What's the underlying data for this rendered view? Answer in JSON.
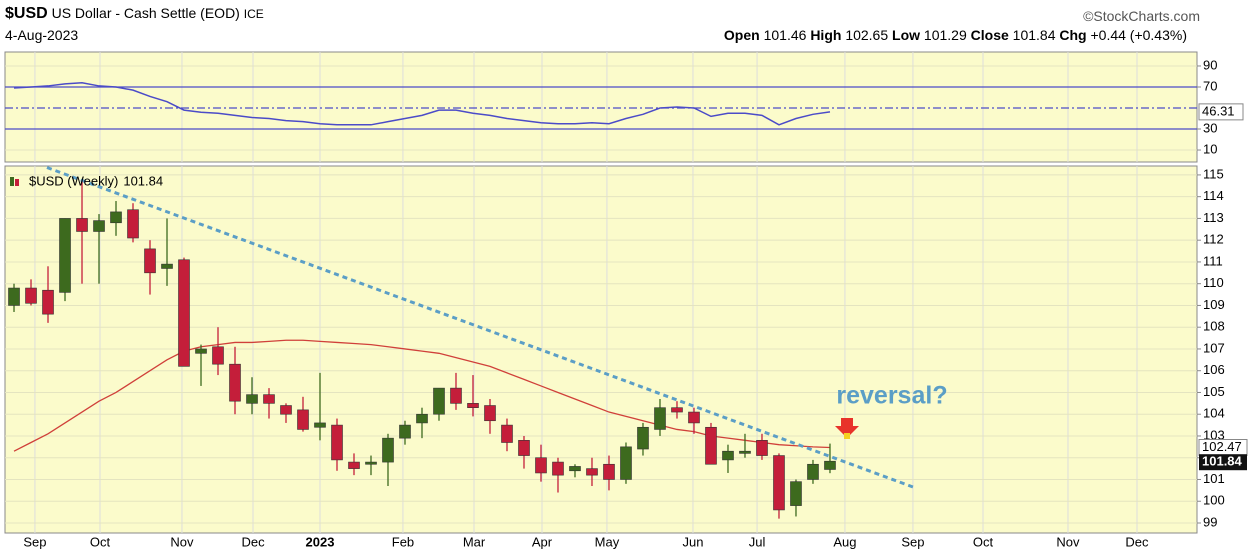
{
  "header": {
    "symbol": "$USD",
    "description": "US Dollar - Cash Settle (EOD)",
    "exchange": "ICE",
    "source": "©StockCharts.com",
    "date": "4-Aug-2023",
    "open_label": "Open",
    "high_label": "High",
    "low_label": "Low",
    "close_label": "Close",
    "chg_label": "Chg",
    "change": "+0.44 (+0.43%)"
  },
  "chart_data": [
    {
      "type": "line",
      "ylim": [
        -1.4,
        103.3
      ],
      "yticks": [
        10,
        30,
        70,
        90
      ],
      "reference_lines": [
        30,
        50,
        70
      ],
      "series": [
        {
          "color": "#4b4bc8",
          "values": [
            69,
            70,
            71,
            73,
            74,
            71,
            70,
            67,
            61,
            56,
            48,
            46,
            45,
            43,
            41,
            40,
            38,
            37,
            35,
            34,
            34,
            34,
            37,
            40,
            43,
            48,
            48,
            45,
            43,
            40,
            38,
            36,
            35,
            35,
            36,
            35,
            40,
            44,
            50,
            51,
            50,
            42,
            45,
            45,
            43,
            34,
            40,
            44,
            46.31
          ]
        }
      ]
    },
    {
      "type": "candlestick",
      "legend_label": "$USD (Weekly)",
      "annotation": "reversal?",
      "up_color": "#3d6a1e",
      "down_color": "#c41e3a",
      "open": [
        109.0,
        109.8,
        109.7,
        109.6,
        113.0,
        112.4,
        112.8,
        113.4,
        111.6,
        110.7,
        111.1,
        106.8,
        107.1,
        106.3,
        104.5,
        104.9,
        104.4,
        104.2,
        103.4,
        103.5,
        101.8,
        101.7,
        101.8,
        102.9,
        103.6,
        104.0,
        105.2,
        104.5,
        104.4,
        103.5,
        102.8,
        102.0,
        101.8,
        101.4,
        101.5,
        101.7,
        101.0,
        102.4,
        103.3,
        104.3,
        104.1,
        103.4,
        101.9,
        102.2,
        102.8,
        102.1,
        99.8,
        101.0,
        101.46
      ],
      "high": [
        110.0,
        110.2,
        110.8,
        113.0,
        114.7,
        113.2,
        113.8,
        113.7,
        112.0,
        113.0,
        111.2,
        107.2,
        108.0,
        107.1,
        105.7,
        105.2,
        104.5,
        104.8,
        105.9,
        103.8,
        102.2,
        102.1,
        103.1,
        103.7,
        104.3,
        105.2,
        105.9,
        105.8,
        104.7,
        103.8,
        103.0,
        102.6,
        102.0,
        101.7,
        102.0,
        102.1,
        102.7,
        103.6,
        104.7,
        104.6,
        104.3,
        103.6,
        102.6,
        103.1,
        103.1,
        102.2,
        101.0,
        101.9,
        102.65
      ],
      "low": [
        108.7,
        109.0,
        108.2,
        109.2,
        110.0,
        110.0,
        112.2,
        111.9,
        109.5,
        109.9,
        106.2,
        105.3,
        105.8,
        104.0,
        104.0,
        103.8,
        103.6,
        103.2,
        102.8,
        101.4,
        101.2,
        101.2,
        100.7,
        102.6,
        102.9,
        103.7,
        104.2,
        103.9,
        103.1,
        102.3,
        101.5,
        100.9,
        100.4,
        101.1,
        100.7,
        100.5,
        100.8,
        102.1,
        103.0,
        103.8,
        103.1,
        101.7,
        101.3,
        102.0,
        101.9,
        99.2,
        99.3,
        100.8,
        101.29
      ],
      "close": [
        109.8,
        109.1,
        108.6,
        113.0,
        112.4,
        112.9,
        113.3,
        112.1,
        110.5,
        110.9,
        106.2,
        107.0,
        106.3,
        104.6,
        104.9,
        104.5,
        104.0,
        103.3,
        103.6,
        101.9,
        101.5,
        101.8,
        102.9,
        103.5,
        104.0,
        105.2,
        104.5,
        104.3,
        103.7,
        102.7,
        102.1,
        101.3,
        101.2,
        101.6,
        101.2,
        101.0,
        102.5,
        103.4,
        104.3,
        104.1,
        103.6,
        101.7,
        102.3,
        102.3,
        102.1,
        99.6,
        100.9,
        101.7,
        101.84
      ],
      "moving_average": {
        "color": "#d0403a",
        "values": [
          102.3,
          102.7,
          103.1,
          103.6,
          104.1,
          104.6,
          105.0,
          105.5,
          106.0,
          106.5,
          106.9,
          107.1,
          107.2,
          107.3,
          107.3,
          107.35,
          107.4,
          107.4,
          107.35,
          107.3,
          107.25,
          107.2,
          107.1,
          107.0,
          106.9,
          106.8,
          106.6,
          106.4,
          106.2,
          105.9,
          105.6,
          105.3,
          105.0,
          104.7,
          104.4,
          104.1,
          103.9,
          103.7,
          103.5,
          103.3,
          103.2,
          103.0,
          102.9,
          102.8,
          102.7,
          102.6,
          102.55,
          102.5,
          102.47
        ]
      },
      "trendline": {
        "color": "#5b9ec6",
        "x": [
          1.94,
          53.0
        ],
        "y": [
          115.34,
          100.62
        ]
      },
      "xlim": [
        -0.53,
        69.59
      ],
      "xticks": [
        {
          "value": 1.23,
          "label": "Sep"
        },
        {
          "value": 5.06,
          "label": "Oct"
        },
        {
          "value": 9.88,
          "label": "Nov"
        },
        {
          "value": 14.06,
          "label": "Dec"
        },
        {
          "value": 18.0,
          "label": "2023"
        },
        {
          "value": 22.88,
          "label": "Feb"
        },
        {
          "value": 27.06,
          "label": "Mar"
        },
        {
          "value": 31.06,
          "label": "Apr"
        },
        {
          "value": 34.88,
          "label": "May"
        },
        {
          "value": 39.94,
          "label": "Jun"
        },
        {
          "value": 43.71,
          "label": "Jul"
        },
        {
          "value": 48.88,
          "label": "Aug"
        },
        {
          "value": 52.88,
          "label": "Sep"
        },
        {
          "value": 57.0,
          "label": "Oct"
        },
        {
          "value": 62.0,
          "label": "Nov"
        },
        {
          "value": 66.06,
          "label": "Dec"
        }
      ],
      "ylim": [
        98.54,
        115.41
      ],
      "yticks": [
        99,
        100,
        101,
        102,
        103,
        104,
        105,
        106,
        107,
        108,
        109,
        110,
        111,
        112,
        113,
        114,
        115
      ],
      "grid": true
    }
  ]
}
